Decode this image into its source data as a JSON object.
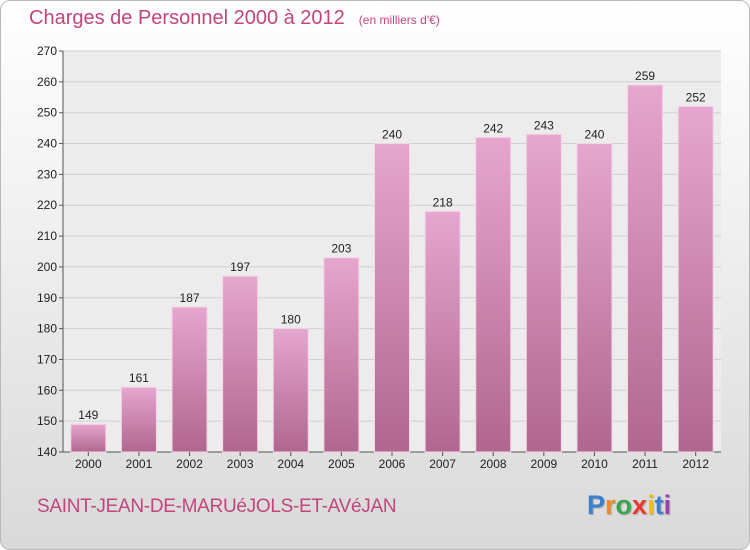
{
  "title": "Charges de Personnel 2000 à 2012",
  "subtitle": "(en milliers d'€)",
  "commune": "SAINT-JEAN-DE-MARUéJOLS-ET-AVéJAN",
  "brand": {
    "letters": [
      {
        "ch": "P",
        "color": "#3a7fd0"
      },
      {
        "ch": "r",
        "color": "#f08a24"
      },
      {
        "ch": "o",
        "color": "#3aa64c"
      },
      {
        "ch": "x",
        "color": "#e9392f"
      },
      {
        "ch": "i",
        "color": "#f2c200"
      },
      {
        "ch": "t",
        "color": "#3a7fd0"
      },
      {
        "ch": "i",
        "color": "#9c3fb0"
      }
    ]
  },
  "colors": {
    "bar_top": "#e6a6cf",
    "bar_bottom": "#b0678f",
    "bar_edge": "#f6d3e8",
    "grid": "#d0d0d0",
    "axis": "#555555",
    "text": "#222222"
  },
  "chart_data": {
    "type": "bar",
    "categories": [
      "2000",
      "2001",
      "2002",
      "2003",
      "2004",
      "2005",
      "2006",
      "2007",
      "2008",
      "2009",
      "2010",
      "2011",
      "2012"
    ],
    "values": [
      149,
      161,
      187,
      197,
      180,
      203,
      240,
      218,
      242,
      243,
      240,
      259,
      252
    ],
    "ylim": [
      140,
      270
    ],
    "yticks": [
      140,
      150,
      160,
      170,
      180,
      190,
      200,
      210,
      220,
      230,
      240,
      250,
      260,
      270
    ],
    "grid": true,
    "data_labels": true
  }
}
